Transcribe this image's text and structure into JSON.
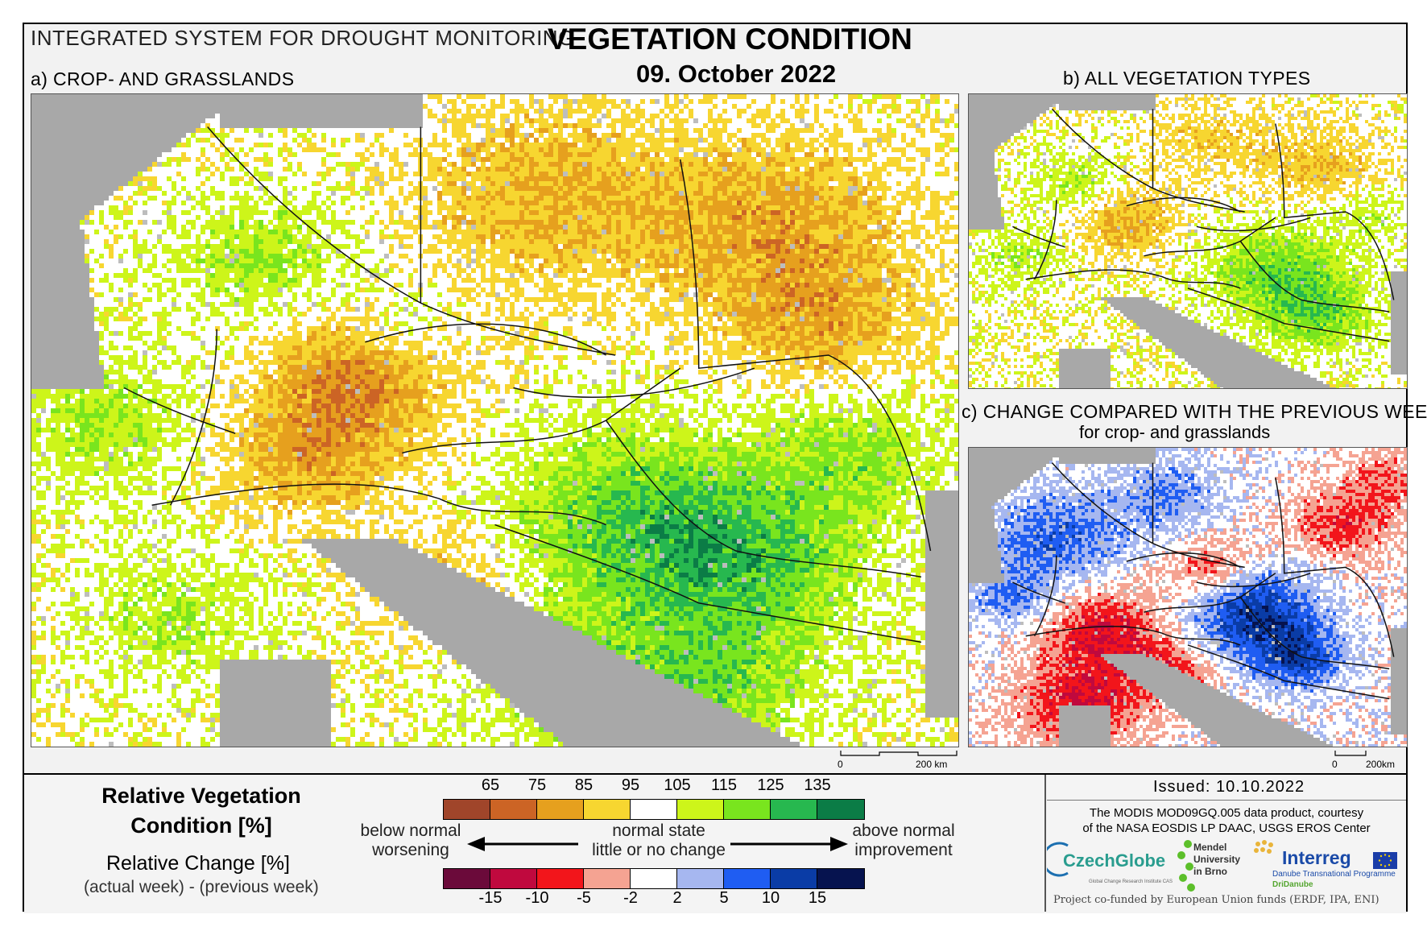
{
  "header": {
    "system_title": "INTEGRATED SYSTEM FOR DROUGHT MONITORING",
    "main_title": "VEGETATION CONDITION",
    "date": "09. October 2022"
  },
  "panels": {
    "a_label": "a) CROP- AND GRASSLANDS",
    "b_label": "b) ALL VEGETATION TYPES",
    "c_label": "c) CHANGE COMPARED WITH THE PREVIOUS WEEK",
    "c_sublabel": "for crop- and grasslands"
  },
  "scalebars": {
    "a": {
      "zero": "0",
      "dist": "200 km"
    },
    "c": {
      "zero": "0",
      "dist": "200km"
    }
  },
  "legend": {
    "rvc_title": "Relative Vegetation Condition [%]",
    "rc_title": "Relative Change [%]",
    "rc_subtitle": "(actual week) - (previous week)",
    "rvc_ticks": [
      "65",
      "75",
      "85",
      "95",
      "105",
      "115",
      "125",
      "135"
    ],
    "rvc_colors": [
      "#a0452a",
      "#cc6425",
      "#e6a01e",
      "#f7d630",
      "#ffffff",
      "#cdf51a",
      "#79e51e",
      "#27b84f",
      "#0b7c46"
    ],
    "rc_ticks": [
      "-15",
      "-10",
      "-5",
      "-2",
      "2",
      "5",
      "10",
      "15"
    ],
    "rc_colors": [
      "#6b0a3a",
      "#c0093e",
      "#f2151b",
      "#f5a392",
      "#ffffff",
      "#a6b7f0",
      "#1f5df2",
      "#0a3ca6",
      "#06134f"
    ],
    "left_note": [
      "below normal",
      "worsening"
    ],
    "center_note": [
      "normal state",
      "little or no change"
    ],
    "right_note": [
      "above normal",
      "improvement"
    ]
  },
  "footer": {
    "issued": "Issued: 10.10.2022",
    "credit_line1": "The MODIS MOD09GQ.005 data product, courtesy",
    "credit_line2": "of the NASA EOSDIS LP DAAC, USGS EROS Center",
    "logo_czechglobe": "CzechGlobe",
    "logo_czechglobe_sub": "Global Change Research Institute CAS",
    "logo_mendel": [
      "Mendel",
      "University",
      "in Brno"
    ],
    "logo_interreg": "Interreg",
    "logo_interreg_sub": "Danube Transnational Programme",
    "logo_dridanube": "DriDanube",
    "cofunded": "Project co-funded by European Union funds (ERDF, IPA, ENI)"
  }
}
